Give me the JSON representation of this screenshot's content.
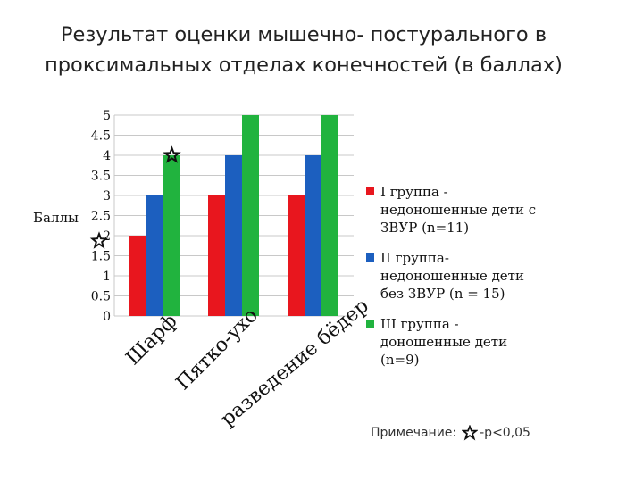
{
  "title_line1": "Результат  оценки мышечно- постурального в",
  "title_line2": "проксимальных отделах конечностей (в баллах)",
  "note": {
    "prefix": "Примечание:",
    "suffix": "-p<0,05",
    "icon": "star-icon"
  },
  "colors": {
    "group1": "#e8161e",
    "group2": "#1c5fbf",
    "group3": "#21b33e",
    "grid": "#c8c8c8"
  },
  "chart_data": {
    "type": "bar",
    "title": "Результат  оценки мышечно- постурального в проксимальных отделах конечностей (в баллах)",
    "ylabel": "Баллы",
    "ylim": [
      0,
      5
    ],
    "yticks": [
      "0",
      "0.5",
      "1",
      "1.5",
      "2",
      "2.5",
      "3",
      "3.5",
      "4",
      "4.5",
      "5"
    ],
    "categories": [
      "Шарф",
      "Пятко-ухо",
      "разведение бёдер"
    ],
    "series": [
      {
        "name": "I группа - недоношенные дети с ЗВУР (n=11)",
        "values": [
          2,
          3,
          3
        ]
      },
      {
        "name": "II группа- недоношенные дети без ЗВУР (n = 15)",
        "values": [
          3,
          4,
          4
        ]
      },
      {
        "name": "III группа - доношенные дети (n=9)",
        "values": [
          4,
          5,
          5
        ]
      }
    ],
    "legend_position": "right",
    "grid": true,
    "annotations": [
      {
        "type": "star",
        "category": "Шарф",
        "series": "III группа - доношенные дети (n=9)",
        "meaning": "p<0,05"
      },
      {
        "type": "star",
        "axis": "y",
        "value": 2,
        "meaning": "p<0,05"
      }
    ]
  }
}
